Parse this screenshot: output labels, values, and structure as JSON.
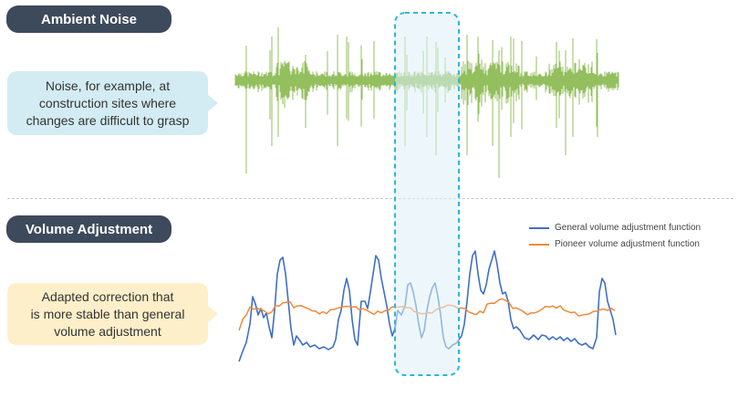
{
  "sections": {
    "ambient": {
      "title": "Ambient Noise",
      "bubble": "Noise, for example, at\nconstruction sites where\nchanges are difficult to grasp"
    },
    "volume": {
      "title": "Volume Adjustment",
      "bubble": "Adapted correction that\nis more stable than general\nvolume adjustment"
    }
  },
  "legend": [
    {
      "label": "General volume adjustment function",
      "color": "#3f6fc4"
    },
    {
      "label": "Pioneer volume adjustment function",
      "color": "#ee8a3a"
    }
  ],
  "colors": {
    "noise": "#93bf5e",
    "highlight": "#2fb5d4",
    "pill": "#3d4a5c"
  }
}
